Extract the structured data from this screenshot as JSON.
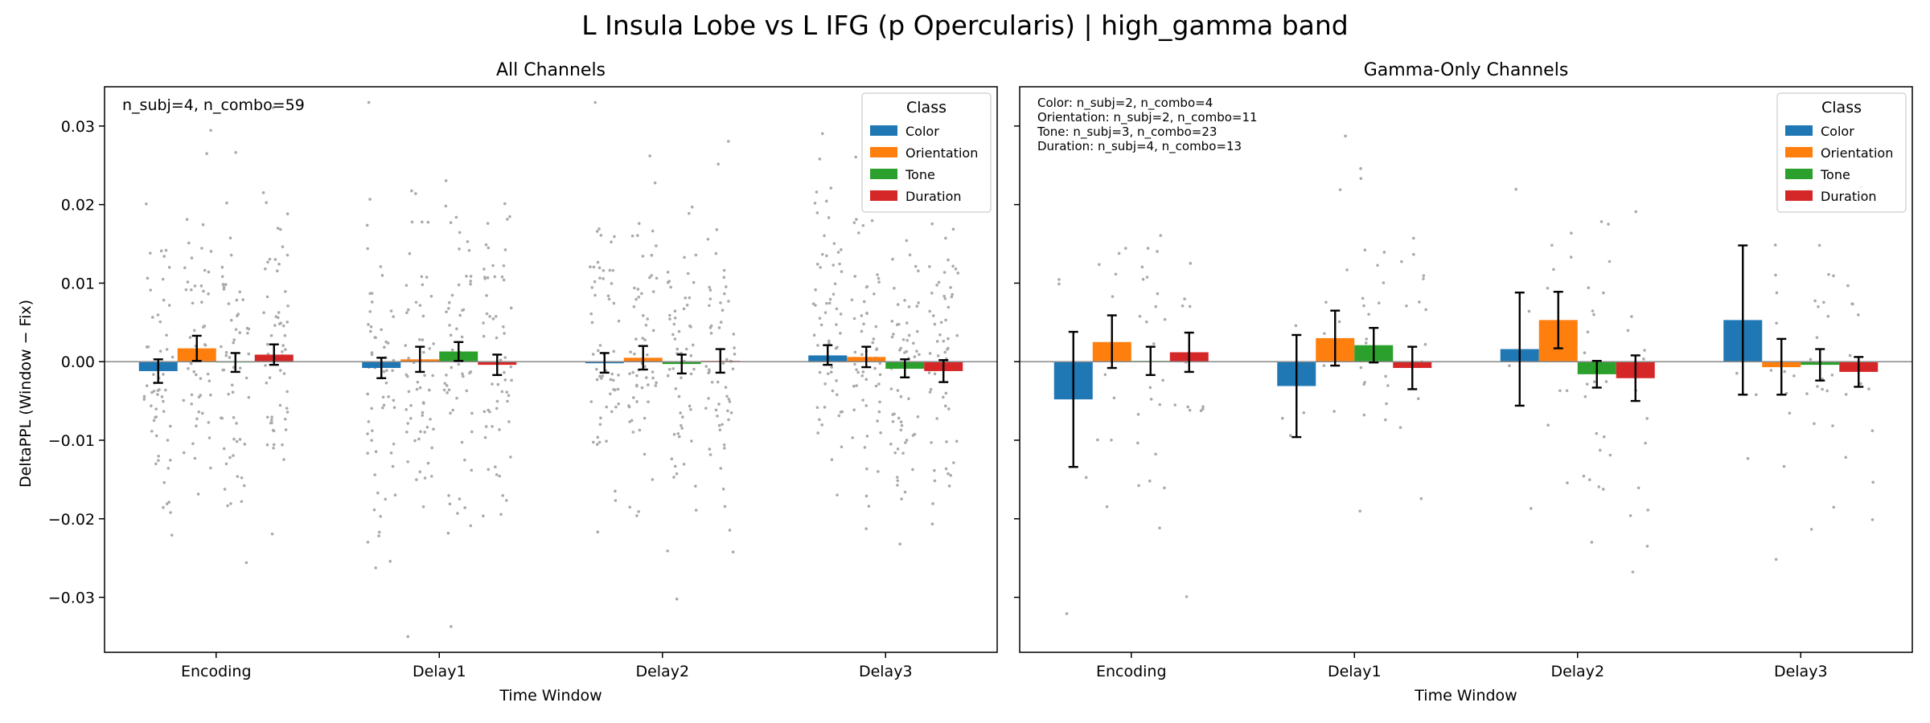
{
  "figure": {
    "suptitle": "L Insula Lobe vs L IFG (p Opercularis)  |  high_gamma band",
    "ylabel": "DeltaPPL (Window − Fix)",
    "xlabel": "Time Window"
  },
  "colors": {
    "Color": "#1f77b4",
    "Orientation": "#ff7f0e",
    "Tone": "#2ca02c",
    "Duration": "#d62728",
    "points": "#aaaaaa"
  },
  "chart_data": [
    {
      "type": "bar",
      "title": "All Channels",
      "xlabel": "Time Window",
      "ylabel": "DeltaPPL (Window − Fix)",
      "ylim": [
        -0.037,
        0.035
      ],
      "yticks": [
        0.03,
        0.02,
        0.01,
        0.0,
        -0.01,
        -0.02,
        -0.03
      ],
      "ytick_labels": [
        "0.03",
        "0.02",
        "0.01",
        "0.00",
        "−0.01",
        "−0.02",
        "−0.03"
      ],
      "categories": [
        "Encoding",
        "Delay1",
        "Delay2",
        "Delay3"
      ],
      "annotation": [
        "n_subj=4, n_combo=59"
      ],
      "legend": {
        "title": "Class",
        "position": "top-right",
        "entries": [
          "Color",
          "Orientation",
          "Tone",
          "Duration"
        ]
      },
      "series": [
        {
          "name": "Color",
          "values": [
            -0.0012,
            -0.0008,
            -0.0002,
            0.0008
          ],
          "err_low": [
            -0.0027,
            -0.0021,
            -0.0014,
            -0.0004
          ],
          "err_high": [
            0.0003,
            0.0005,
            0.0011,
            0.0021
          ]
        },
        {
          "name": "Orientation",
          "values": [
            0.0017,
            0.0003,
            0.0005,
            0.0006
          ],
          "err_low": [
            0.0001,
            -0.0013,
            -0.001,
            -0.0007
          ],
          "err_high": [
            0.0033,
            0.0019,
            0.002,
            0.0019
          ]
        },
        {
          "name": "Tone",
          "values": [
            -0.0001,
            0.0013,
            -0.0003,
            -0.0009
          ],
          "err_low": [
            -0.0013,
            0.0001,
            -0.0015,
            -0.002
          ],
          "err_high": [
            0.0011,
            0.0025,
            0.0009,
            0.0003
          ]
        },
        {
          "name": "Duration",
          "values": [
            0.0009,
            -0.0004,
            0.0001,
            -0.0012
          ],
          "err_low": [
            -0.0004,
            -0.0017,
            -0.0014,
            -0.0026
          ],
          "err_high": [
            0.0022,
            0.0009,
            0.0016,
            0.0002
          ]
        }
      ],
      "points_per_group": 59,
      "points_spread_sd": 0.0105
    },
    {
      "type": "bar",
      "title": "Gamma-Only Channels",
      "xlabel": "Time Window",
      "ylim": [
        -0.037,
        0.035
      ],
      "categories": [
        "Encoding",
        "Delay1",
        "Delay2",
        "Delay3"
      ],
      "annotation": [
        "Color: n_subj=2, n_combo=4",
        "Orientation: n_subj=2, n_combo=11",
        "Tone: n_subj=3, n_combo=23",
        "Duration: n_subj=4, n_combo=13"
      ],
      "legend": {
        "title": "Class",
        "position": "top-right",
        "entries": [
          "Color",
          "Orientation",
          "Tone",
          "Duration"
        ]
      },
      "series": [
        {
          "name": "Color",
          "values": [
            -0.0048,
            -0.0031,
            0.0016,
            0.0053
          ],
          "err_low": [
            -0.0134,
            -0.0096,
            -0.0056,
            -0.0042
          ],
          "err_high": [
            0.0038,
            0.0034,
            0.0088,
            0.0148
          ]
        },
        {
          "name": "Orientation",
          "values": [
            0.0025,
            0.003,
            0.0053,
            -0.0007
          ],
          "err_low": [
            -0.0008,
            -0.0005,
            0.0017,
            -0.0042
          ],
          "err_high": [
            0.0059,
            0.0065,
            0.0089,
            0.0029
          ]
        },
        {
          "name": "Tone",
          "values": [
            0.0001,
            0.0021,
            -0.0016,
            -0.0004
          ],
          "err_low": [
            -0.0017,
            -0.0001,
            -0.0033,
            -0.0024
          ],
          "err_high": [
            0.0019,
            0.0043,
            0.0001,
            0.0016
          ]
        },
        {
          "name": "Duration",
          "values": [
            0.0012,
            -0.0008,
            -0.0021,
            -0.0013
          ],
          "err_low": [
            -0.0013,
            -0.0035,
            -0.005,
            -0.0032
          ],
          "err_high": [
            0.0037,
            0.0019,
            0.0008,
            0.0006
          ]
        }
      ],
      "points_per_group": [
        4,
        11,
        23,
        13
      ],
      "points_spread_sd": 0.011
    }
  ]
}
